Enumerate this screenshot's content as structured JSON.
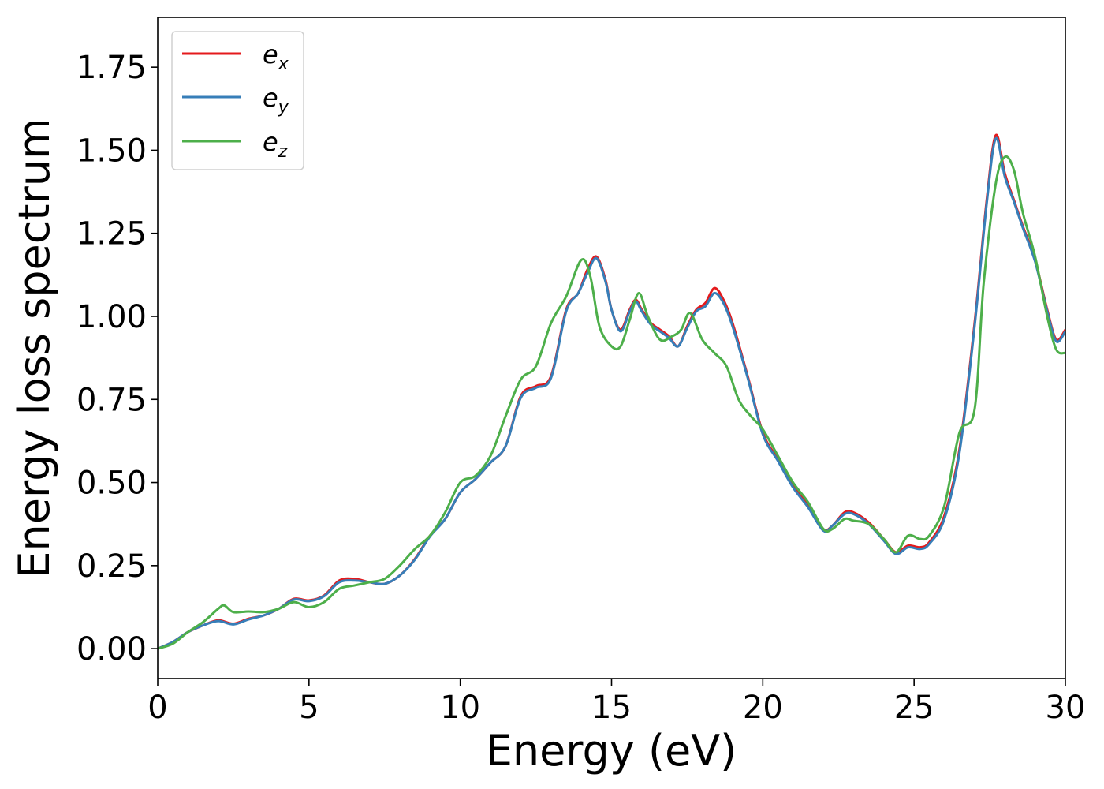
{
  "chart_data": {
    "type": "line",
    "title": "",
    "xlabel": "Energy (eV)",
    "ylabel": "Energy loss spectrum",
    "xlim": [
      0,
      30
    ],
    "ylim": [
      -0.09,
      1.9
    ],
    "xticks": [
      0,
      5,
      10,
      15,
      20,
      25,
      30
    ],
    "xtick_labels": [
      "0",
      "5",
      "10",
      "15",
      "20",
      "25",
      "30"
    ],
    "yticks": [
      0.0,
      0.25,
      0.5,
      0.75,
      1.0,
      1.25,
      1.5,
      1.75
    ],
    "ytick_labels": [
      "0.00",
      "0.25",
      "0.50",
      "0.75",
      "1.00",
      "1.25",
      "1.50",
      "1.75"
    ],
    "grid": false,
    "legend": "top-left",
    "series": [
      {
        "name": "e_x",
        "label_base": "e",
        "label_sub": "x",
        "color": "#e41a1c",
        "x": [
          0,
          0.5,
          1,
          1.5,
          2,
          2.5,
          3,
          3.5,
          4,
          4.5,
          5,
          5.5,
          6,
          6.5,
          7,
          7.5,
          8,
          8.5,
          9,
          9.5,
          10,
          10.5,
          11,
          11.5,
          12,
          12.5,
          13,
          13.5,
          13.9,
          14.2,
          14.5,
          14.8,
          15.0,
          15.3,
          15.6,
          15.8,
          16.0,
          16.3,
          16.6,
          16.9,
          17.2,
          17.5,
          17.8,
          18.1,
          18.4,
          18.7,
          19.0,
          19.5,
          20,
          20.5,
          21,
          21.5,
          22,
          22.3,
          22.7,
          23,
          23.5,
          24,
          24.4,
          24.8,
          25.2,
          25.5,
          26,
          26.5,
          27,
          27.4,
          27.7,
          28.0,
          28.3,
          28.6,
          29,
          29.4,
          29.7,
          30
        ],
        "values": [
          0.0,
          0.02,
          0.05,
          0.07,
          0.085,
          0.075,
          0.09,
          0.1,
          0.12,
          0.15,
          0.145,
          0.16,
          0.205,
          0.21,
          0.2,
          0.195,
          0.22,
          0.27,
          0.34,
          0.39,
          0.47,
          0.51,
          0.56,
          0.61,
          0.76,
          0.79,
          0.82,
          1.02,
          1.07,
          1.14,
          1.18,
          1.11,
          1.02,
          0.96,
          1.02,
          1.05,
          1.02,
          0.98,
          0.96,
          0.94,
          0.91,
          0.97,
          1.02,
          1.04,
          1.085,
          1.05,
          0.98,
          0.82,
          0.65,
          0.57,
          0.49,
          0.43,
          0.36,
          0.37,
          0.41,
          0.41,
          0.38,
          0.33,
          0.29,
          0.31,
          0.305,
          0.32,
          0.4,
          0.6,
          0.98,
          1.35,
          1.545,
          1.43,
          1.35,
          1.27,
          1.17,
          1.02,
          0.93,
          0.96
        ]
      },
      {
        "name": "e_y",
        "label_base": "e",
        "label_sub": "y",
        "color": "#377eb8",
        "x": [
          0,
          0.5,
          1,
          1.5,
          2,
          2.5,
          3,
          3.5,
          4,
          4.5,
          5,
          5.5,
          6,
          6.5,
          7,
          7.5,
          8,
          8.5,
          9,
          9.5,
          10,
          10.5,
          11,
          11.5,
          12,
          12.5,
          13,
          13.5,
          13.9,
          14.2,
          14.5,
          14.8,
          15.0,
          15.3,
          15.6,
          15.8,
          16.0,
          16.3,
          16.6,
          16.9,
          17.2,
          17.5,
          17.8,
          18.1,
          18.4,
          18.7,
          19.0,
          19.5,
          20,
          20.5,
          21,
          21.5,
          22,
          22.3,
          22.7,
          23,
          23.5,
          24,
          24.4,
          24.8,
          25.2,
          25.5,
          26,
          26.5,
          27,
          27.4,
          27.7,
          28.0,
          28.3,
          28.6,
          29,
          29.4,
          29.7,
          30
        ],
        "values": [
          0.0,
          0.02,
          0.05,
          0.07,
          0.083,
          0.073,
          0.088,
          0.1,
          0.12,
          0.148,
          0.143,
          0.158,
          0.2,
          0.205,
          0.2,
          0.195,
          0.22,
          0.268,
          0.338,
          0.39,
          0.47,
          0.51,
          0.56,
          0.61,
          0.755,
          0.785,
          0.815,
          1.015,
          1.07,
          1.13,
          1.175,
          1.105,
          1.02,
          0.955,
          1.015,
          1.045,
          1.015,
          0.975,
          0.955,
          0.935,
          0.91,
          0.965,
          1.015,
          1.03,
          1.07,
          1.04,
          0.97,
          0.815,
          0.645,
          0.565,
          0.485,
          0.425,
          0.355,
          0.37,
          0.405,
          0.405,
          0.375,
          0.325,
          0.285,
          0.305,
          0.3,
          0.315,
          0.39,
          0.59,
          0.97,
          1.34,
          1.535,
          1.42,
          1.345,
          1.265,
          1.165,
          1.015,
          0.925,
          0.955
        ]
      },
      {
        "name": "e_z",
        "label_base": "e",
        "label_sub": "z",
        "color": "#4daf4a",
        "x": [
          0,
          0.5,
          1,
          1.5,
          2,
          2.2,
          2.5,
          3,
          3.5,
          4,
          4.5,
          5,
          5.5,
          6,
          6.5,
          7,
          7.5,
          8,
          8.5,
          9,
          9.5,
          10,
          10.5,
          11,
          11.5,
          12,
          12.5,
          13,
          13.5,
          14.0,
          14.3,
          14.6,
          15.0,
          15.3,
          15.6,
          15.9,
          16.2,
          16.6,
          17.0,
          17.3,
          17.6,
          18.0,
          18.4,
          18.8,
          19.2,
          19.6,
          20,
          20.5,
          21,
          21.5,
          22,
          22.3,
          22.7,
          23,
          23.5,
          24,
          24.4,
          24.8,
          25.2,
          25.5,
          26,
          26.5,
          27,
          27.3,
          27.7,
          28.0,
          28.3,
          28.6,
          29,
          29.4,
          29.7,
          30
        ],
        "values": [
          0.0,
          0.015,
          0.05,
          0.08,
          0.12,
          0.13,
          0.11,
          0.112,
          0.11,
          0.12,
          0.14,
          0.125,
          0.14,
          0.18,
          0.19,
          0.2,
          0.21,
          0.25,
          0.3,
          0.34,
          0.41,
          0.5,
          0.52,
          0.58,
          0.7,
          0.81,
          0.85,
          0.98,
          1.06,
          1.17,
          1.12,
          0.97,
          0.91,
          0.91,
          0.99,
          1.07,
          1.0,
          0.93,
          0.94,
          0.96,
          1.01,
          0.93,
          0.89,
          0.85,
          0.75,
          0.7,
          0.66,
          0.58,
          0.5,
          0.44,
          0.36,
          0.36,
          0.39,
          0.385,
          0.375,
          0.33,
          0.29,
          0.34,
          0.33,
          0.34,
          0.43,
          0.65,
          0.72,
          1.1,
          1.4,
          1.48,
          1.44,
          1.31,
          1.18,
          1.0,
          0.9,
          0.89
        ]
      }
    ]
  }
}
